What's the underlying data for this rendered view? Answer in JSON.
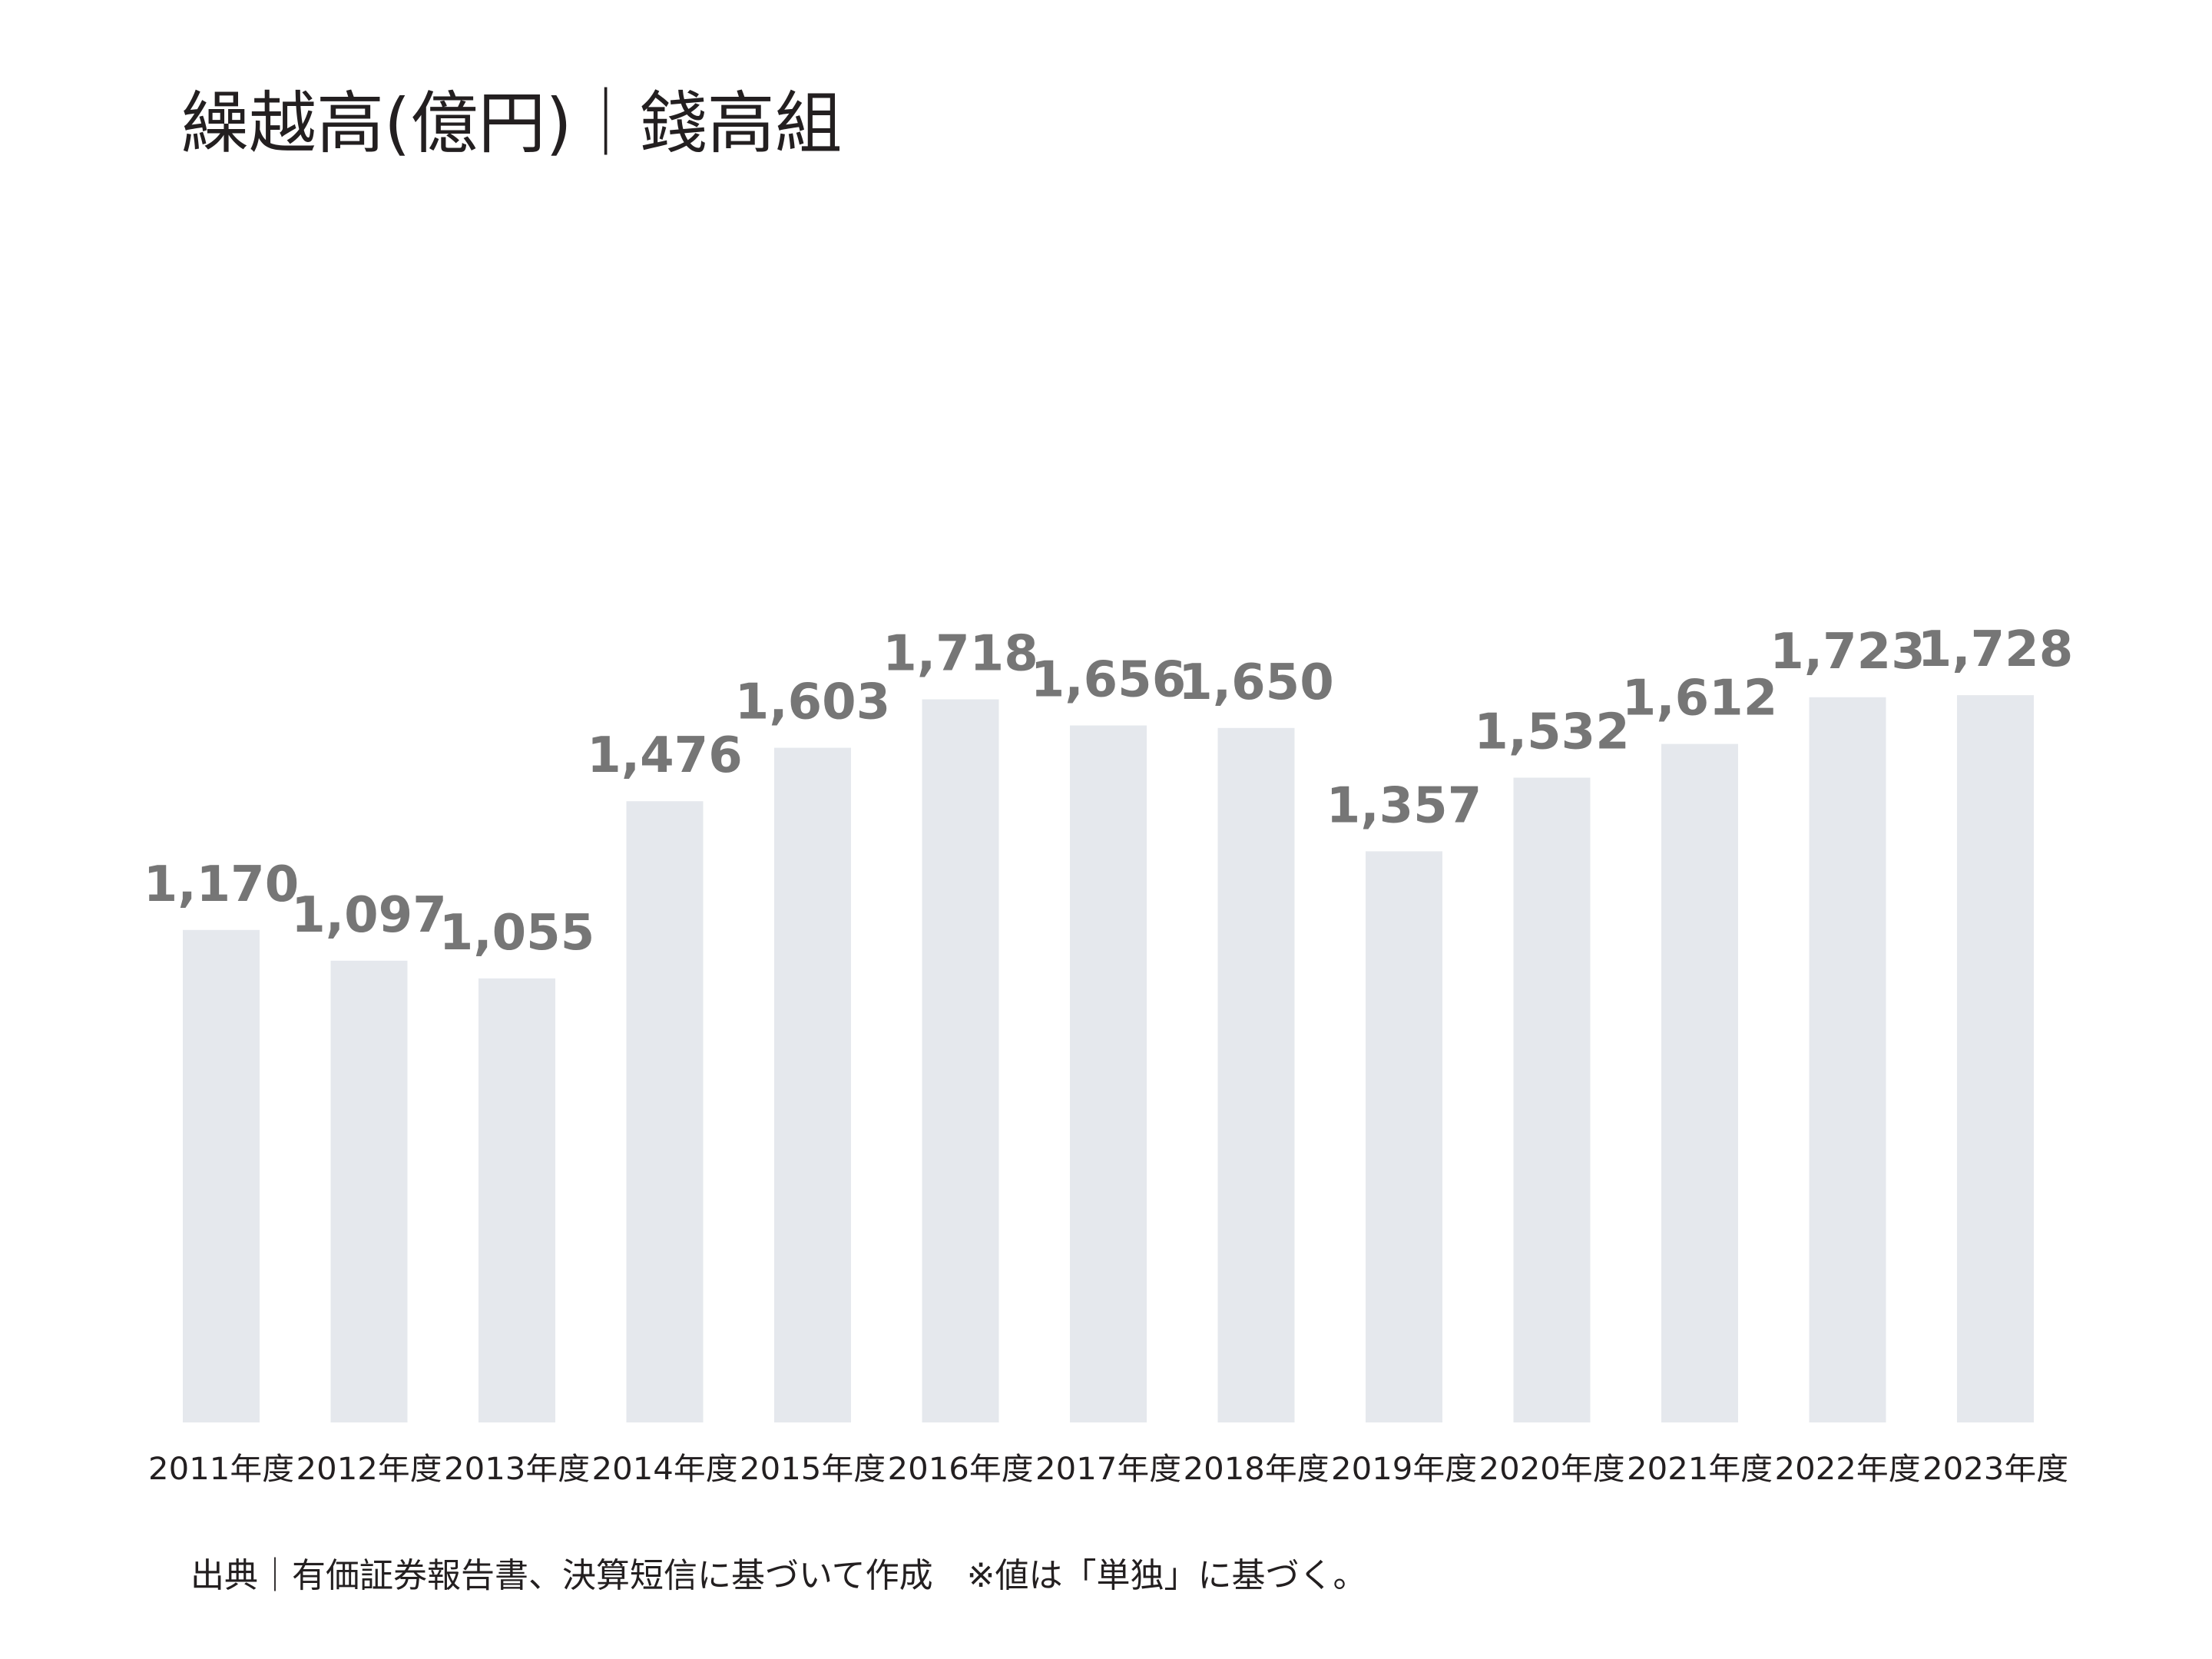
{
  "page": {
    "title": "繰越高(億円)｜錢高組",
    "source": "出典｜有価証券報告書、決算短信に基づいて作成　※値は「単独」に基づく。"
  },
  "chart_data": {
    "type": "bar",
    "title": "繰越高(億円)｜錢高組",
    "xlabel": "",
    "ylabel": "",
    "categories": [
      "2011年度",
      "2012年度",
      "2013年度",
      "2014年度",
      "2015年度",
      "2016年度",
      "2017年度",
      "2018年度",
      "2019年度",
      "2020年度",
      "2021年度",
      "2022年度",
      "2023年度"
    ],
    "series": [
      {
        "values": [
          1170,
          1097,
          1055,
          1476,
          1603,
          1718,
          1656,
          1650,
          1357,
          1532,
          1612,
          1723,
          1728
        ],
        "labels": [
          "1,170",
          "1,097",
          "1,055",
          "1,476",
          "1,603",
          "1,718",
          "1,656",
          "1,650",
          "1,357",
          "1,532",
          "1,612",
          "1,723",
          "1,728"
        ]
      }
    ],
    "ylim": [
      0,
      5000
    ],
    "grid": false,
    "legend": "none",
    "bar_color": "#e5e8ed",
    "value_label_color": "#767676",
    "text_color": "#231f20"
  }
}
